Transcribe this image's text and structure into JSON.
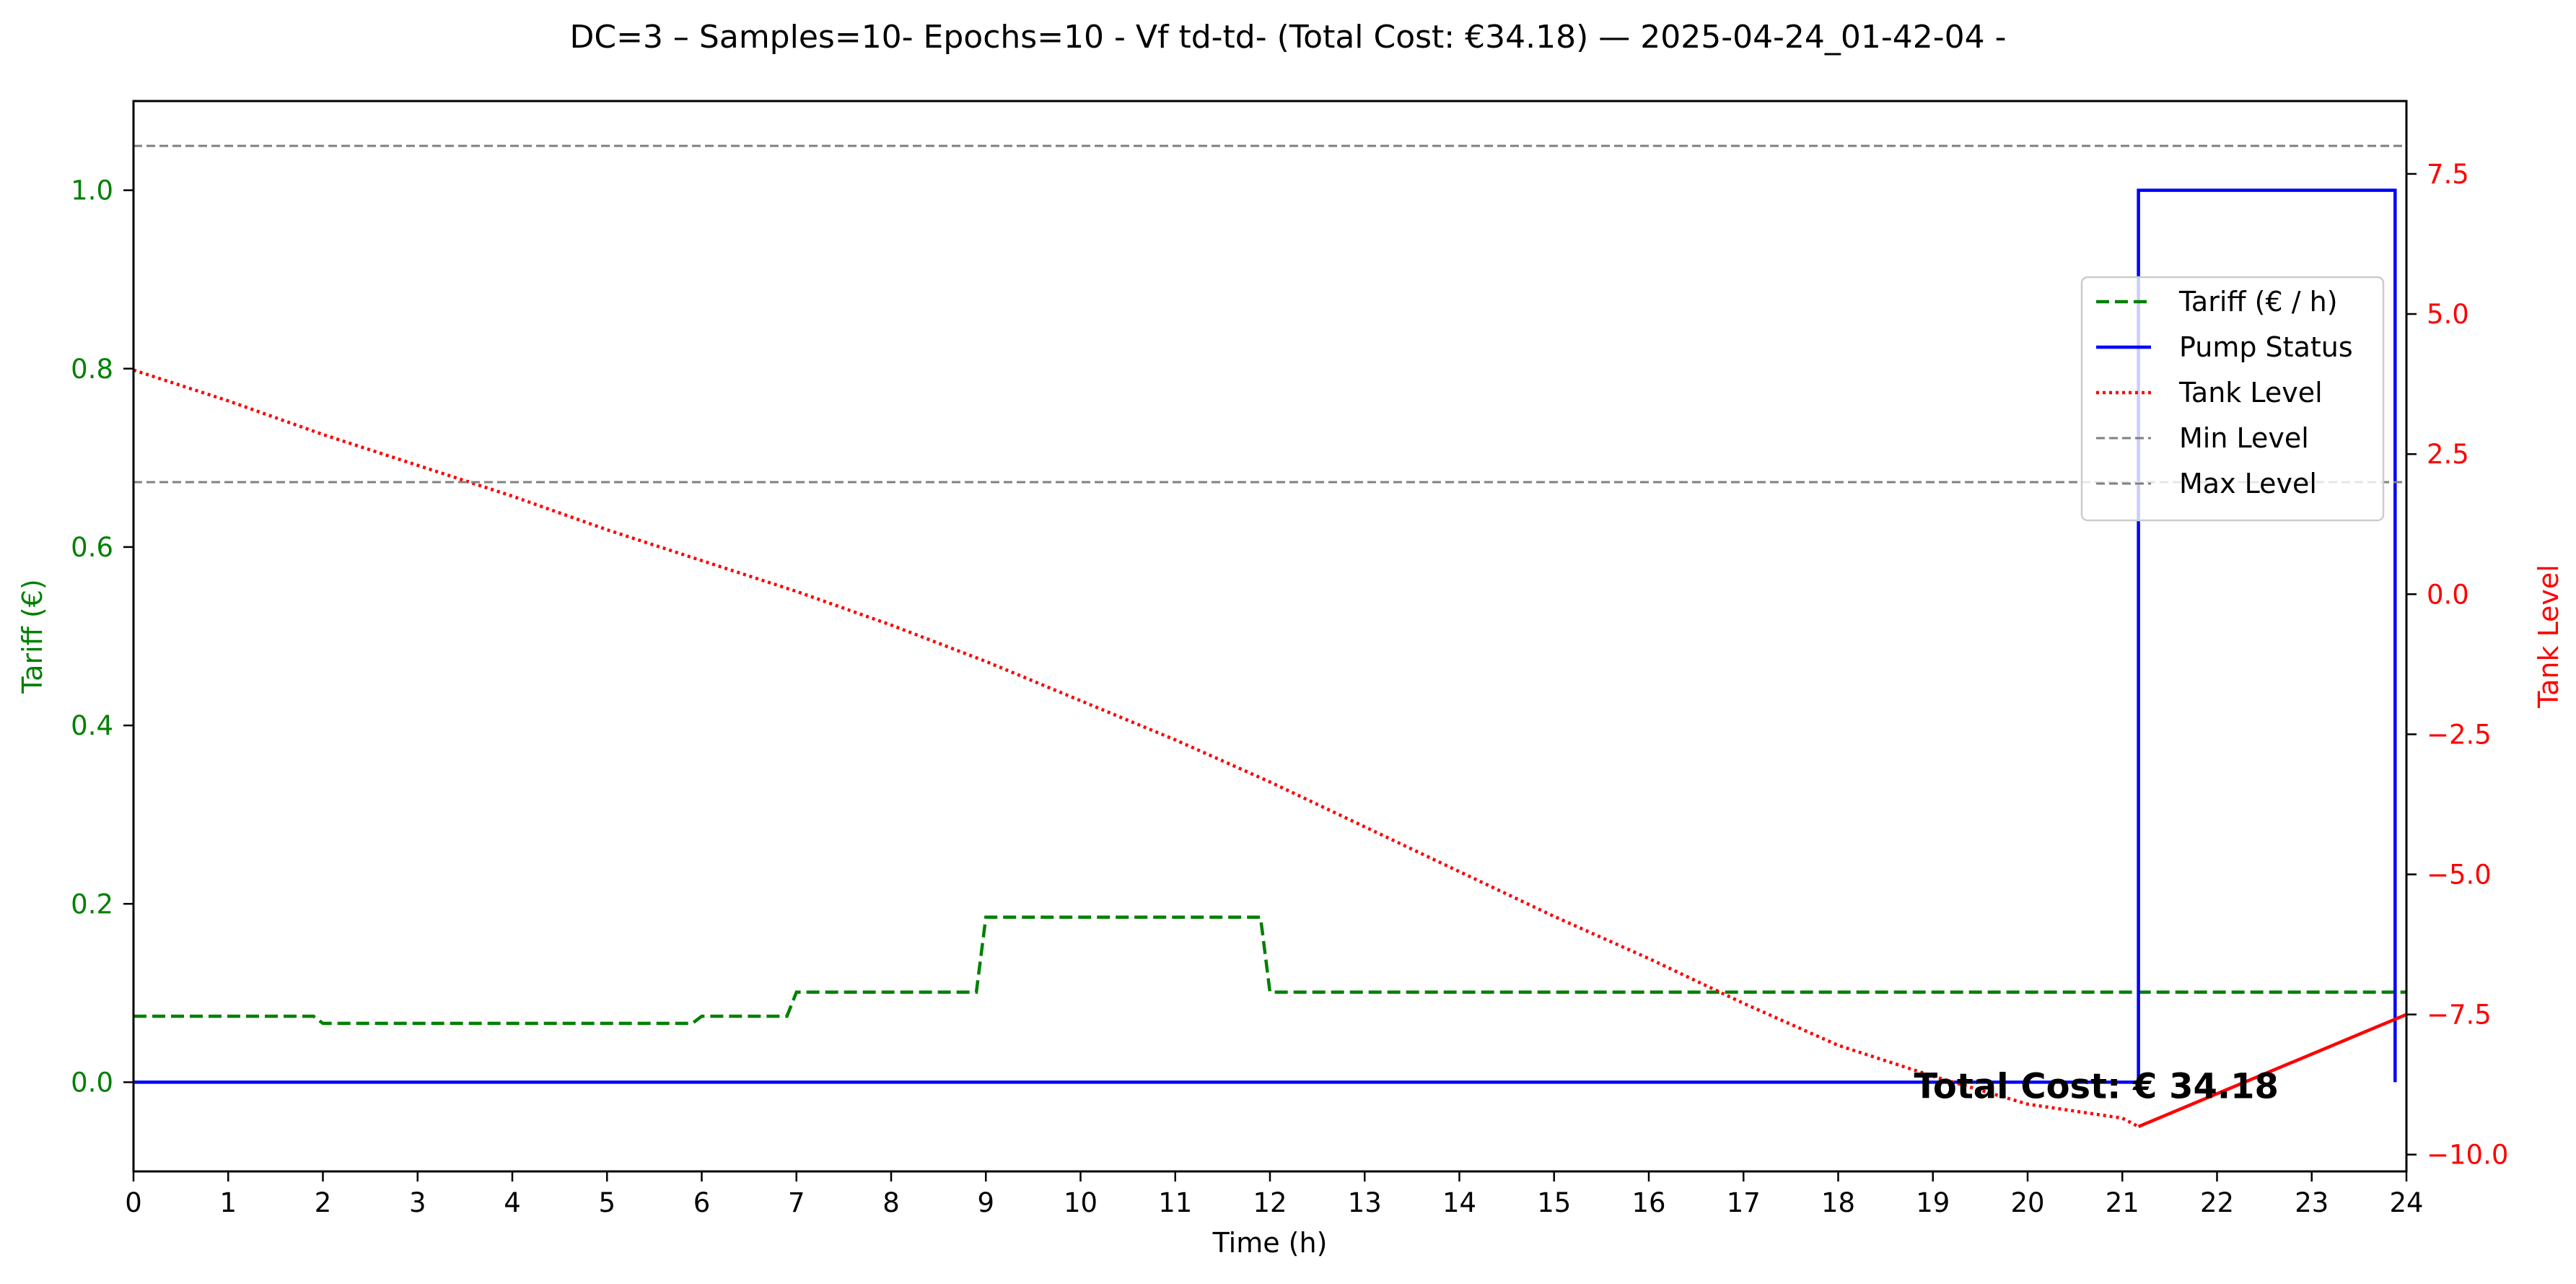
{
  "chart_data": {
    "type": "line",
    "title": "DC=3 – Samples=10- Epochs=10 - Vf td-td- (Total Cost: €34.18) — 2025-04-24_01-42-04 -",
    "xlabel": "Time (h)",
    "ylabel_left": "Tariff (€)",
    "ylabel_right": "Tank Level",
    "xlim": [
      0,
      24
    ],
    "ylim_left": [
      -0.1,
      1.1
    ],
    "ylim_right": [
      -10.3,
      8.8
    ],
    "x_ticks": [
      0,
      1,
      2,
      3,
      4,
      5,
      6,
      7,
      8,
      9,
      10,
      11,
      12,
      13,
      14,
      15,
      16,
      17,
      18,
      19,
      20,
      21,
      22,
      23,
      24
    ],
    "x_tick_labels": [
      "0",
      "1",
      "2",
      "3",
      "4",
      "5",
      "6",
      "7",
      "8",
      "9",
      "10",
      "11",
      "12",
      "13",
      "14",
      "15",
      "16",
      "17",
      "18",
      "19",
      "20",
      "21",
      "22",
      "23",
      "24"
    ],
    "y_left_ticks": [
      0.0,
      0.2,
      0.4,
      0.6,
      0.8,
      1.0
    ],
    "y_left_tick_labels": [
      "0.0",
      "0.2",
      "0.4",
      "0.6",
      "0.8",
      "1.0"
    ],
    "y_right_ticks": [
      -10.0,
      -7.5,
      -5.0,
      -2.5,
      0.0,
      2.5,
      5.0,
      7.5
    ],
    "y_right_tick_labels": [
      "−10.0",
      "−7.5",
      "−5.0",
      "−2.5",
      "0.0",
      "2.5",
      "5.0",
      "7.5"
    ],
    "grid": false,
    "legend_position": "upper-right",
    "series": [
      {
        "name": "Tariff (€ / h)",
        "axis": "left",
        "style": "dashed",
        "color": "#008000",
        "x": [
          0,
          1.9,
          2.0,
          5.9,
          6.0,
          6.9,
          7.0,
          8.9,
          9.0,
          11.9,
          12.0,
          24
        ],
        "y": [
          0.074,
          0.074,
          0.066,
          0.066,
          0.074,
          0.074,
          0.101,
          0.101,
          0.185,
          0.185,
          0.101,
          0.101
        ]
      },
      {
        "name": "Pump Status",
        "axis": "left",
        "style": "solid",
        "color": "#0000ff",
        "x": [
          0,
          21.17,
          21.17,
          23.88,
          23.88
        ],
        "y": [
          0,
          0,
          1,
          1,
          0
        ]
      },
      {
        "name": "Tank Level",
        "axis": "right",
        "style": "dotted",
        "color": "#ff0000",
        "x": [
          0,
          1,
          2,
          3,
          4,
          5,
          6,
          7,
          8,
          9,
          10,
          11,
          12,
          13,
          14,
          15,
          16,
          17,
          18,
          19,
          20,
          21,
          21.17
        ],
        "y": [
          4.0,
          3.45,
          2.85,
          2.3,
          1.75,
          1.15,
          0.6,
          0.05,
          -0.55,
          -1.2,
          -1.9,
          -2.6,
          -3.35,
          -4.15,
          -4.95,
          -5.75,
          -6.5,
          -7.3,
          -8.05,
          -8.6,
          -9.1,
          -9.35,
          -9.5
        ]
      },
      {
        "name": "",
        "axis": "right",
        "style": "solid",
        "color": "#ff0000",
        "x": [
          21.17,
          24
        ],
        "y": [
          -9.5,
          -7.5
        ]
      },
      {
        "name": "Min Level",
        "axis": "right",
        "style": "hline-dashed",
        "color": "#808080",
        "y_value": 2.0
      },
      {
        "name": "Max Level",
        "axis": "right",
        "style": "hline-dashed",
        "color": "#808080",
        "y_value": 8.0
      }
    ],
    "annotations": [
      {
        "text": "Total Cost: € 34.18",
        "x": 18.8,
        "y_left": -0.018
      }
    ],
    "colors": {
      "left_axis": "#008000",
      "right_axis": "#ff0000",
      "axis_line": "#000000"
    }
  }
}
